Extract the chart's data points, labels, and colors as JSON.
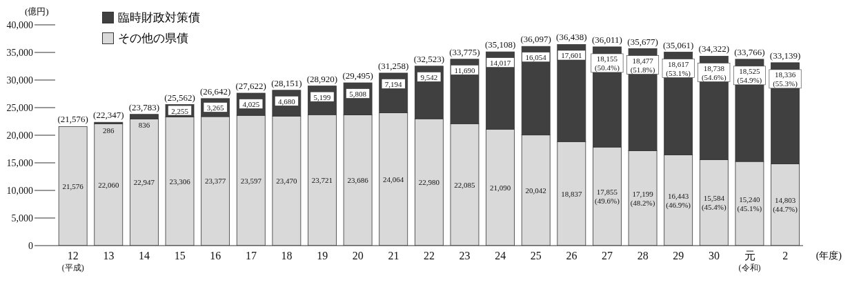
{
  "chart_data": {
    "type": "bar",
    "stacked": true,
    "ylabel": "(億円)",
    "xlabel": "(年度)",
    "categories": [
      "12\n(平成)",
      "13",
      "14",
      "15",
      "16",
      "17",
      "18",
      "19",
      "20",
      "21",
      "22",
      "23",
      "24",
      "25",
      "26",
      "27",
      "28",
      "29",
      "30",
      "元\n(令和)",
      "2"
    ],
    "series": [
      {
        "name": "その他の県債",
        "color": "#d9d9d9",
        "values": [
          21576,
          22060,
          22947,
          23306,
          23377,
          23597,
          23470,
          23721,
          23686,
          24064,
          22980,
          22085,
          21090,
          20042,
          18837,
          17855,
          17199,
          16443,
          15584,
          15240,
          14803
        ],
        "value_labels": [
          "21,576",
          "22,060",
          "22,947",
          "23,306",
          "23,377",
          "23,597",
          "23,470",
          "23,721",
          "23,686",
          "24,064",
          "22,980",
          "22,085",
          "21,090",
          "20,042",
          "18,837",
          "17,855\n(49.6%)",
          "17,199\n(48.2%)",
          "16,443\n(46.9%)",
          "15,584\n(45.4%)",
          "15,240\n(45.1%)",
          "14,803\n(44.7%)"
        ]
      },
      {
        "name": "臨時財政対策債",
        "color": "#404040",
        "values": [
          0,
          286,
          836,
          2255,
          3265,
          4025,
          4680,
          5199,
          5808,
          7194,
          9542,
          11690,
          14017,
          16054,
          17601,
          18155,
          18477,
          18617,
          18738,
          18525,
          18336
        ],
        "value_labels": [
          null,
          "286",
          "836",
          "2,255",
          "3,265",
          "4,025",
          "4,680",
          "5,199",
          "5,808",
          "7,194",
          "9,542",
          "11,690",
          "14,017",
          "16,054",
          "17,601",
          "18,155\n(50.4%)",
          "18,477\n(51.8%)",
          "18,617\n(53.1%)",
          "18,738\n(54.6%)",
          "18,525\n(54.9%)",
          "18,336\n(55.3%)"
        ]
      }
    ],
    "totals": [
      "(21,576)",
      "(22,347)",
      "(23,783)",
      "(25,562)",
      "(26,642)",
      "(27,622)",
      "(28,151)",
      "(28,920)",
      "(29,495)",
      "(31,258)",
      "(32,523)",
      "(33,775)",
      "(35,108)",
      "(36,097)",
      "(36,438)",
      "(36,011)",
      "(35,677)",
      "(35,061)",
      "(34,322)",
      "(33,766)",
      "(33,139)"
    ],
    "ylim": [
      0,
      40000
    ],
    "yticks": [
      0,
      {
        "value": 5000,
        "label": "5,000"
      },
      {
        "value": 10000,
        "label": "10,000"
      },
      {
        "value": 15000,
        "label": "15,000"
      },
      {
        "value": 20000,
        "label": "20,000"
      },
      {
        "value": 25000,
        "label": "25,000"
      },
      {
        "value": 30000,
        "label": "30,000"
      },
      {
        "value": 35000,
        "label": "35,000"
      },
      {
        "value": 40000,
        "label": "40,000"
      }
    ],
    "grid": false,
    "legend": "top left"
  }
}
